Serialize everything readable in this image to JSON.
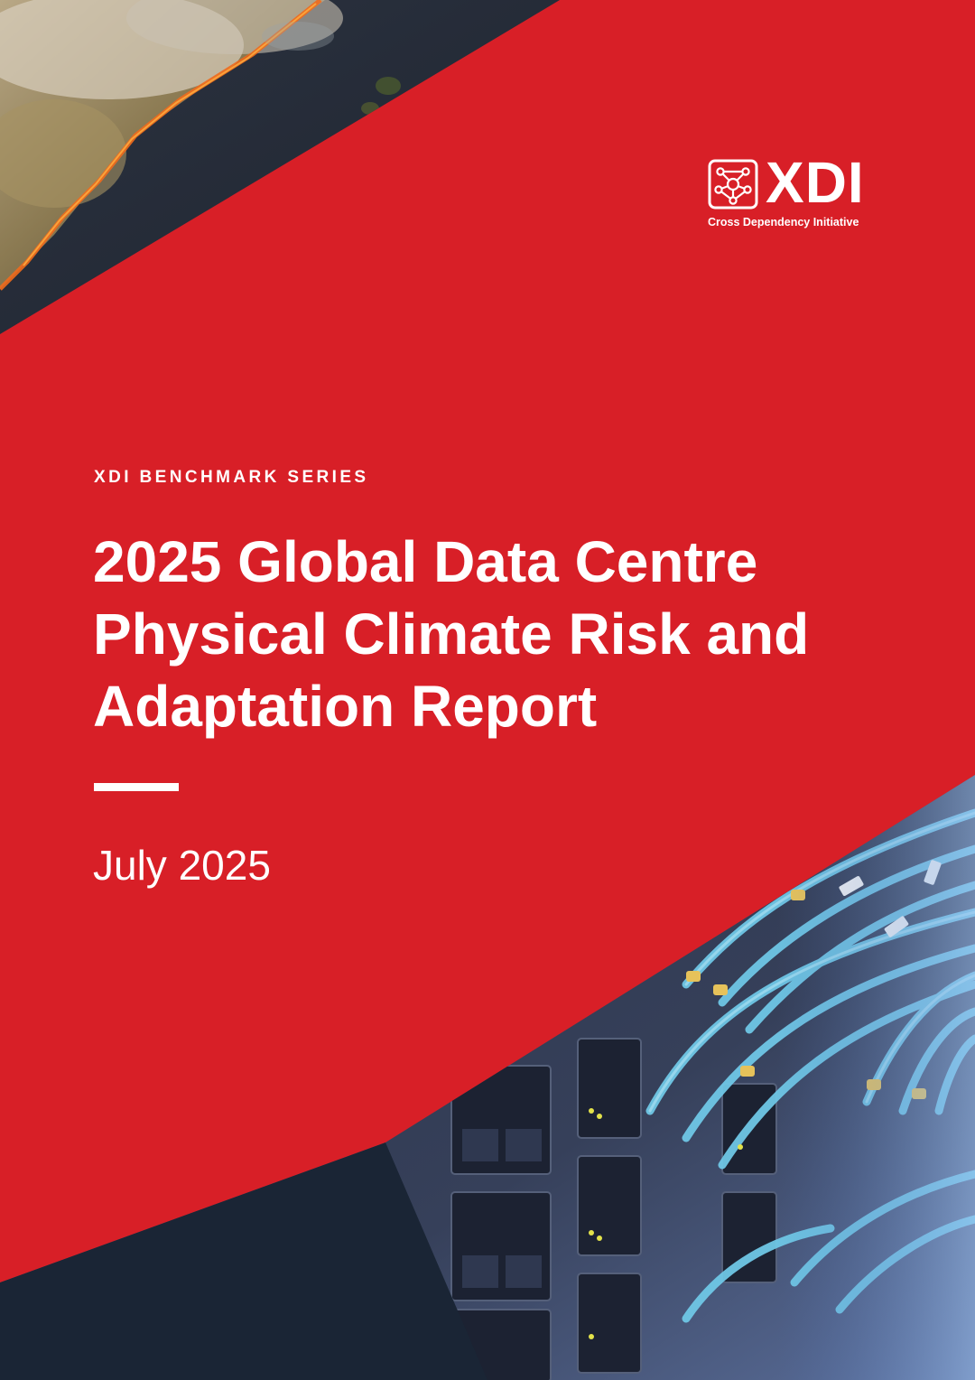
{
  "logo": {
    "wordmark": "XDI",
    "tagline": "Cross Dependency Initiative"
  },
  "cover": {
    "series": "XDI BENCHMARK SERIES",
    "title_lines": [
      "2025 Global Data Centre",
      "Physical Climate Risk and",
      "Adaptation Report"
    ],
    "date": "July 2025"
  },
  "colors": {
    "brand_red": "#d81f27",
    "navy": "#1a2535",
    "white": "#ffffff"
  },
  "images": {
    "top_left": "wildfire-aerial-photo",
    "bottom_right": "data-centre-fiber-cables-photo"
  }
}
